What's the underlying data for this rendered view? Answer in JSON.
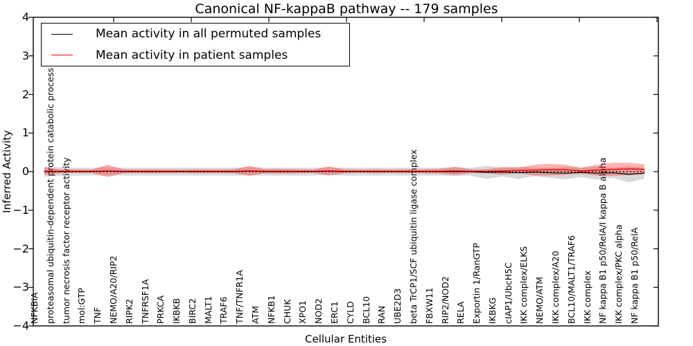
{
  "title": "Canonical NF-kappaB pathway -- 179 samples",
  "axes": {
    "xlabel": "Cellular Entities",
    "ylabel": "Inferred Activity",
    "ytick_labels": [
      "4",
      "3",
      "2",
      "1",
      "0",
      "−1",
      "−2",
      "−3",
      "−4"
    ],
    "yticks": [
      4,
      3,
      2,
      1,
      0,
      -1,
      -2,
      -3,
      -4
    ]
  },
  "legend": {
    "items": [
      {
        "label": "Mean activity in all permuted samples",
        "color": "#000000"
      },
      {
        "label": "Mean activity in patient samples",
        "color": "#ff0000"
      }
    ]
  },
  "colors": {
    "permuted_line": "#000000",
    "patient_line": "#ff0000",
    "permuted_band": "rgba(120,120,120,0.28)",
    "patient_band": "rgba(255,0,0,0.30)",
    "frame": "#000000"
  },
  "chart_data": {
    "type": "line",
    "title": "Canonical NF-kappaB pathway -- 179 samples",
    "xlabel": "Cellular Entities",
    "ylabel": "Inferred Activity",
    "ylim": [
      -4,
      4
    ],
    "grid": false,
    "legend_position": "upper left",
    "zero_line_style": "dotted",
    "categories": [
      "NFKBIA",
      "proteasomal ubiquitin-dependent protein catabolic process",
      "tumor necrosis factor receptor activity",
      "mol:GTP",
      "TNF",
      "NEMO/A20/RIP2",
      "RIPK2",
      "TNFRSF1A",
      "PRKCA",
      "IKBKB",
      "BIRC2",
      "MALT1",
      "TRAF6",
      "TNF/TNFR1A",
      "ATM",
      "NFKB1",
      "CHUK",
      "XPO1",
      "NOD2",
      "ERC1",
      "CYLD",
      "BCL10",
      "RAN",
      "UBE2D3",
      "beta TrCP1/SCF ubiquitin ligase complex",
      "FBXW11",
      "RIP2/NOD2",
      "RELA",
      "Exportin 1/RanGTP",
      "IKBKG",
      "cIAP1/UbcH5C",
      "IKK complex/ELKS",
      "NEMO/ATM",
      "IKK complex/A20",
      "BCL10/MALT1/TRAF6",
      "IKK complex",
      "NF kappa B1 p50/RelA/I kappa B alpha",
      "IKK complex/PKC alpha",
      "NF kappa B1 p50/RelA"
    ],
    "series": [
      {
        "name": "Mean activity in all permuted samples",
        "color": "#000000",
        "band_color": "rgba(120,120,120,0.28)",
        "values": [
          0,
          0,
          0,
          0,
          0.01,
          0,
          0,
          0,
          0,
          0,
          0,
          0,
          0,
          0.01,
          0,
          0,
          0,
          0,
          0.01,
          0,
          0,
          0,
          0,
          0,
          0,
          0,
          0,
          0,
          -0.02,
          -0.01,
          -0.03,
          -0.01,
          -0.03,
          -0.04,
          -0.02,
          -0.04,
          -0.03,
          -0.07,
          -0.04
        ],
        "std": [
          0.13,
          0.11,
          0.1,
          0.1,
          0.11,
          0.1,
          0.1,
          0.1,
          0.1,
          0.1,
          0.1,
          0.1,
          0.1,
          0.11,
          0.1,
          0.1,
          0.1,
          0.1,
          0.1,
          0.1,
          0.1,
          0.1,
          0.1,
          0.1,
          0.1,
          0.1,
          0.11,
          0.1,
          0.17,
          0.11,
          0.16,
          0.11,
          0.13,
          0.16,
          0.12,
          0.17,
          0.13,
          0.21,
          0.14
        ]
      },
      {
        "name": "Mean activity in patient samples",
        "color": "#ff0000",
        "band_color": "rgba(255,0,0,0.30)",
        "values": [
          0.01,
          0.01,
          0.01,
          0.01,
          0.02,
          0.01,
          0.01,
          0.01,
          0.01,
          0.01,
          0.01,
          0.01,
          0.01,
          0.02,
          0.01,
          0.01,
          0.01,
          0.01,
          0.02,
          0.01,
          0.01,
          0.01,
          0.01,
          0.01,
          0.01,
          0.01,
          0.02,
          0.01,
          0.01,
          0.02,
          0.03,
          0.04,
          0.05,
          0.05,
          0.02,
          0.04,
          0.06,
          0.07,
          0.06
        ],
        "std": [
          0.1,
          0.05,
          0.04,
          0.04,
          0.16,
          0.05,
          0.04,
          0.05,
          0.04,
          0.04,
          0.05,
          0.04,
          0.05,
          0.13,
          0.05,
          0.06,
          0.05,
          0.04,
          0.12,
          0.05,
          0.04,
          0.05,
          0.04,
          0.05,
          0.05,
          0.06,
          0.11,
          0.05,
          0.05,
          0.1,
          0.07,
          0.14,
          0.15,
          0.13,
          0.08,
          0.14,
          0.17,
          0.16,
          0.13
        ]
      }
    ]
  }
}
